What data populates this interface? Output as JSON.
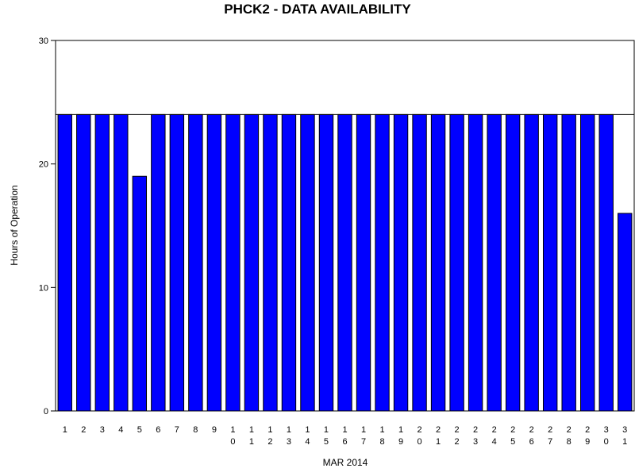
{
  "chart_data": {
    "type": "bar",
    "title": "PHCK2 - DATA AVAILABILITY",
    "xlabel": "MAR 2014",
    "ylabel": "Hours of Operation",
    "ylim": [
      0,
      30
    ],
    "yticks": [
      "0",
      "10",
      "20",
      "30"
    ],
    "reference_line": 24,
    "grid": false,
    "categories": [
      "1",
      "2",
      "3",
      "4",
      "5",
      "6",
      "7",
      "8",
      "9",
      "10",
      "11",
      "12",
      "13",
      "14",
      "15",
      "16",
      "17",
      "18",
      "19",
      "20",
      "21",
      "22",
      "23",
      "24",
      "25",
      "26",
      "27",
      "28",
      "29",
      "30",
      "31"
    ],
    "values": [
      24,
      24,
      24,
      24,
      19,
      24,
      24,
      24,
      24,
      24,
      24,
      24,
      24,
      24,
      24,
      24,
      24,
      24,
      24,
      24,
      24,
      24,
      24,
      24,
      24,
      24,
      24,
      24,
      24,
      24,
      16
    ],
    "colors": {
      "bar": "#0000ff",
      "bar_edge": "#000000",
      "axis": "#000000",
      "background": "#ffffff"
    }
  }
}
